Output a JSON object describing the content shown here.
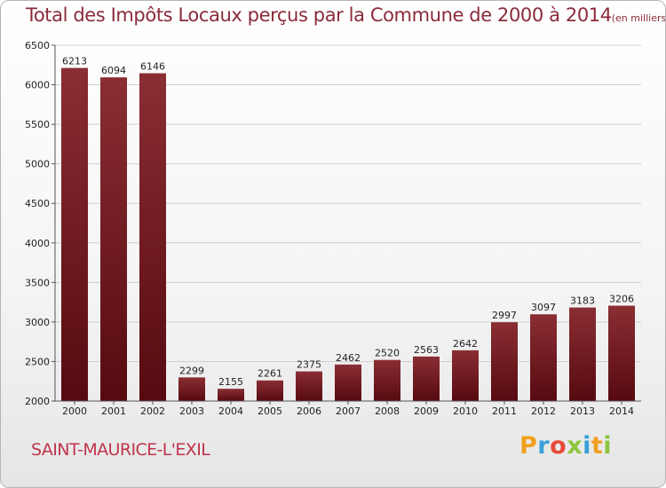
{
  "header": {
    "title": "Total des Impôts Locaux perçus par la Commune de 2000 à 2014",
    "unit": "(en milliers d'€)"
  },
  "footer": {
    "commune": "SAINT-MAURICE-L'EXIL",
    "logo_letters": [
      {
        "ch": "P",
        "color": "#f0a020"
      },
      {
        "ch": "r",
        "color": "#3aa0d8"
      },
      {
        "ch": "o",
        "color": "#e84a3a"
      },
      {
        "ch": "x",
        "color": "#8cc63e"
      },
      {
        "ch": "i",
        "color": "#3aa0d8"
      },
      {
        "ch": "t",
        "color": "#f0a020"
      },
      {
        "ch": "i",
        "color": "#8cc63e"
      }
    ]
  },
  "chart_data": {
    "type": "bar",
    "categories": [
      "2000",
      "2001",
      "2002",
      "2003",
      "2004",
      "2005",
      "2006",
      "2007",
      "2008",
      "2009",
      "2010",
      "2011",
      "2012",
      "2013",
      "2014"
    ],
    "values": [
      6213,
      6094,
      6146,
      2299,
      2155,
      2261,
      2375,
      2462,
      2520,
      2563,
      2642,
      2997,
      3097,
      3183,
      3206
    ],
    "ylim": [
      2000,
      6500
    ],
    "yticks": [
      2000,
      2500,
      3000,
      3500,
      4000,
      4500,
      5000,
      5500,
      6000,
      6500
    ],
    "grid": true,
    "bar_color_top": "#8a2e33",
    "bar_color_bottom": "#560a10"
  }
}
